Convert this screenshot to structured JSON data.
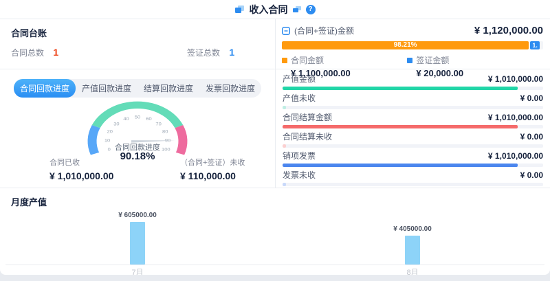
{
  "header": {
    "title": "收入合同",
    "help_label": "?"
  },
  "ledger": {
    "title": "合同台账",
    "stats": [
      {
        "label": "合同总数",
        "value": "1",
        "color": "#ed4014"
      },
      {
        "label": "签证总数",
        "value": "1",
        "color": "#2d8cf0"
      }
    ]
  },
  "amount_summary": {
    "title": "(合同+签证)金额",
    "total": "¥ 1,120,000.00",
    "bar": {
      "primary_percent_label": "98.21%",
      "primary_percent": 98.21,
      "secondary_label": "1.",
      "primary_color": "#ff9a0e",
      "secondary_color": "#2d8cf0"
    },
    "legend": [
      {
        "label": "合同金额",
        "value": "¥ 1,100,000.00",
        "color": "#ff9a0e"
      },
      {
        "label": "签证金额",
        "value": "¥ 20,000.00",
        "color": "#2d8cf0"
      }
    ]
  },
  "recovery": {
    "tabs": [
      "合同回款进度",
      "产值回款进度",
      "结算回款进度",
      "发票回款进度"
    ],
    "active_tab": 0,
    "gauge": {
      "label": "合同回款进度",
      "percent_label": "90.18%",
      "value": 90.18,
      "min": 0,
      "max": 100,
      "ticks": [
        0,
        10,
        20,
        30,
        40,
        50,
        60,
        70,
        80,
        90,
        100
      ],
      "segments": [
        {
          "from": 0,
          "to": 20,
          "color": "#57a7f8"
        },
        {
          "from": 20,
          "to": 80,
          "color": "#63dcb8"
        },
        {
          "from": 80,
          "to": 100,
          "color": "#ee6b9e"
        }
      ],
      "needle_color": "#ccd3db"
    },
    "received": {
      "label": "合同已收",
      "value": "¥ 1,010,000.00"
    },
    "unreceived": {
      "label": "（合同+签证）未收",
      "value": "¥ 110,000.00"
    }
  },
  "stat_rows": [
    {
      "label": "产值金额",
      "value": "¥ 1,010,000.00",
      "percent": 90.18,
      "color": "#21d6a8"
    },
    {
      "label": "产值未收",
      "value": "¥ 0.00",
      "percent": 1.2,
      "color": "#bfeee3"
    },
    {
      "label": "合同结算金额",
      "value": "¥ 1,010,000.00",
      "percent": 90.18,
      "color": "#f56a6a"
    },
    {
      "label": "合同结算未收",
      "value": "¥ 0.00",
      "percent": 1.2,
      "color": "#fbd0d0"
    },
    {
      "label": "销项发票",
      "value": "¥ 1,010,000.00",
      "percent": 90.18,
      "color": "#4b86ee"
    },
    {
      "label": "发票未收",
      "value": "¥ 0.00",
      "percent": 1.2,
      "color": "#c8d9fa"
    }
  ],
  "monthly_chart": {
    "type": "bar",
    "title": "月度产值",
    "categories": [
      "7月",
      "8月"
    ],
    "values": [
      605000,
      405000
    ],
    "value_labels": [
      "¥ 605000.00",
      "¥ 405000.00"
    ],
    "bar_color": "#8dd3f8",
    "ylim": [
      0,
      605000
    ],
    "grid": false,
    "legend": "none"
  }
}
